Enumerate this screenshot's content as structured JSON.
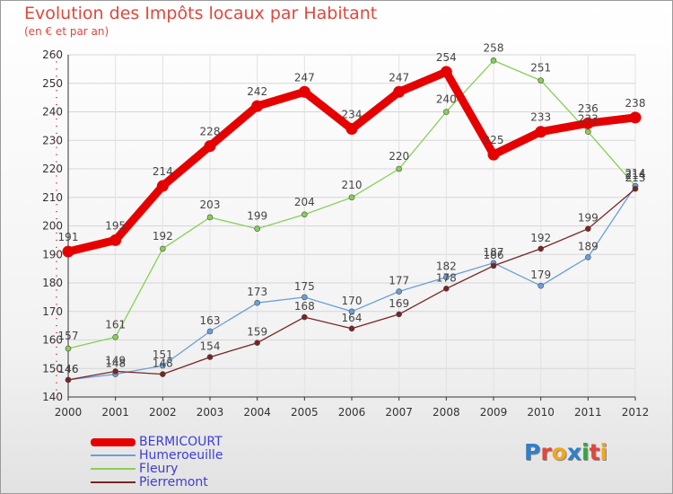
{
  "title": "Evolution des Impôts locaux par Habitant",
  "subtitle": "(en € et par an)",
  "brand": {
    "text": "Proxiti",
    "letter_colors": [
      "#2f7fc9",
      "#e0473c",
      "#f2a51f",
      "#2f7fc9",
      "#3aa53a",
      "#e0473c",
      "#f2a51f"
    ]
  },
  "chart_data": {
    "type": "line",
    "title": "Evolution des Impôts locaux par Habitant",
    "subtitle": "(en € et par an)",
    "xlabel": "",
    "ylabel": "",
    "x": [
      "2000",
      "2001",
      "2002",
      "2003",
      "2004",
      "2005",
      "2006",
      "2007",
      "2008",
      "2009",
      "2010",
      "2011",
      "2012"
    ],
    "ylim": [
      140,
      260
    ],
    "yticks": [
      140,
      150,
      160,
      170,
      180,
      190,
      200,
      210,
      220,
      230,
      240,
      250,
      260
    ],
    "grid": true,
    "legend_position": "bottom-left",
    "series": [
      {
        "name": "BERMICOURT",
        "color": "#e60000",
        "values": [
          191,
          195,
          214,
          228,
          242,
          247,
          234,
          247,
          254,
          225,
          233,
          236,
          238
        ],
        "labels": [
          "191",
          "195",
          "214",
          "228",
          "242",
          "247",
          "234",
          "247",
          "254",
          "225",
          "233",
          "236",
          "238"
        ]
      },
      {
        "name": "Humeroeuille",
        "color": "#6a9fd8",
        "values": [
          146,
          148,
          151,
          163,
          173,
          175,
          170,
          177,
          182,
          187,
          179,
          189,
          214
        ],
        "labels": [
          "146",
          "148",
          "151",
          "163",
          "173",
          "175",
          "170",
          "177",
          "182",
          "187",
          "179",
          "189",
          "214"
        ]
      },
      {
        "name": "Fleury",
        "color": "#88cf55",
        "values": [
          157,
          161,
          192,
          203,
          199,
          204,
          210,
          220,
          240,
          258,
          251,
          233,
          214
        ],
        "labels": [
          "157",
          "161",
          "192",
          "203",
          "199",
          "204",
          "210",
          "220",
          "240",
          "258",
          "251",
          "233",
          "214"
        ]
      },
      {
        "name": "Pierremont",
        "color": "#7b2323",
        "values": [
          146,
          149,
          148,
          154,
          159,
          168,
          164,
          169,
          178,
          186,
          192,
          199,
          213
        ],
        "labels": [
          "146",
          "149",
          "148",
          "154",
          "159",
          "168",
          "164",
          "169",
          "178",
          "186",
          "192",
          "199",
          "213"
        ]
      }
    ]
  }
}
